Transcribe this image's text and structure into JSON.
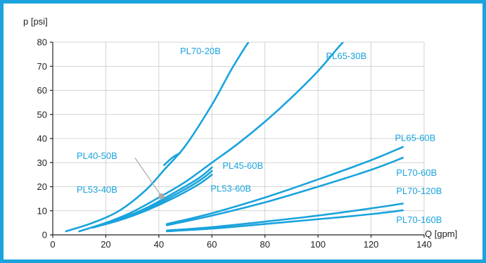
{
  "chart_data": {
    "type": "line",
    "title": "",
    "xlabel": "Q [gpm]",
    "ylabel": "p [psi]",
    "xlim": [
      0,
      140
    ],
    "ylim": [
      0,
      80
    ],
    "x_ticks": [
      "0",
      "20",
      "40",
      "60",
      "80",
      "100",
      "120",
      "140"
    ],
    "y_ticks": [
      "0",
      "10",
      "20",
      "30",
      "40",
      "50",
      "60",
      "70",
      "80"
    ],
    "grid": true,
    "colors": {
      "series": "#1aa3dc",
      "label": "#1aa3dc",
      "frame": "#1aa3dc",
      "pointer": "#aaaaaa"
    },
    "series": [
      {
        "name": "PL70-20B",
        "points": [
          [
            42,
            29
          ],
          [
            45,
            32
          ],
          [
            48,
            34
          ]
        ]
      },
      {
        "name": "PL70-20B",
        "points": [
          [
            5,
            1.5
          ],
          [
            15,
            5
          ],
          [
            25,
            10
          ],
          [
            35,
            18.5
          ],
          [
            42,
            27
          ],
          [
            50,
            37
          ],
          [
            60,
            54
          ],
          [
            67,
            68
          ],
          [
            72,
            77
          ],
          [
            75,
            82
          ]
        ]
      },
      {
        "name": "PL65-30B",
        "points": [
          [
            10,
            1.5
          ],
          [
            20,
            5
          ],
          [
            30,
            9.5
          ],
          [
            40,
            15.5
          ],
          [
            50,
            22
          ],
          [
            60,
            30
          ],
          [
            70,
            38
          ],
          [
            80,
            47
          ],
          [
            90,
            57
          ],
          [
            100,
            68
          ],
          [
            107,
            77
          ],
          [
            111,
            82
          ]
        ]
      },
      {
        "name": "PL45-60B",
        "points": [
          [
            15,
            3
          ],
          [
            25,
            6.5
          ],
          [
            35,
            11
          ],
          [
            45,
            17
          ],
          [
            55,
            23.5
          ],
          [
            60,
            28
          ]
        ]
      },
      {
        "name": "PL53-60B",
        "points": [
          [
            15,
            3
          ],
          [
            25,
            6
          ],
          [
            35,
            10
          ],
          [
            45,
            15
          ],
          [
            55,
            21
          ],
          [
            60,
            25
          ]
        ]
      },
      {
        "name": "",
        "points": [
          [
            15,
            3
          ],
          [
            25,
            6.3
          ],
          [
            35,
            10.5
          ],
          [
            45,
            16
          ],
          [
            55,
            22.3
          ],
          [
            60,
            26.5
          ]
        ]
      },
      {
        "name": "PL65-60B",
        "points": [
          [
            43,
            4.5
          ],
          [
            60,
            9
          ],
          [
            80,
            15.5
          ],
          [
            100,
            23
          ],
          [
            120,
            31
          ],
          [
            132,
            36.5
          ]
        ]
      },
      {
        "name": "PL70-60B",
        "points": [
          [
            43,
            4
          ],
          [
            60,
            8
          ],
          [
            80,
            13.5
          ],
          [
            100,
            20
          ],
          [
            120,
            27
          ],
          [
            132,
            32
          ]
        ]
      },
      {
        "name": "PL70-120B",
        "points": [
          [
            43,
            1.8
          ],
          [
            60,
            3.2
          ],
          [
            80,
            5.5
          ],
          [
            100,
            8
          ],
          [
            120,
            11
          ],
          [
            132,
            13
          ]
        ]
      },
      {
        "name": "PL70-160B",
        "points": [
          [
            43,
            1.5
          ],
          [
            60,
            2.6
          ],
          [
            80,
            4.5
          ],
          [
            100,
            6.5
          ],
          [
            120,
            8.6
          ],
          [
            132,
            10.2
          ]
        ]
      }
    ],
    "labels": [
      {
        "text": "PL70-20B",
        "x": 48,
        "y": 75
      },
      {
        "text": "PL65-30B",
        "x": 103,
        "y": 73
      },
      {
        "text": "PL40-50B",
        "x": 9,
        "y": 31.5
      },
      {
        "text": "PL53-40B",
        "x": 9,
        "y": 17.5
      },
      {
        "text": "PL45-60B",
        "x": 64,
        "y": 27.5
      },
      {
        "text": "PL53-60B",
        "x": 59.5,
        "y": 18
      },
      {
        "text": "PL65-60B",
        "x": 129,
        "y": 39
      },
      {
        "text": "PL70-60B",
        "x": 129.5,
        "y": 24.5
      },
      {
        "text": "PL70-120B",
        "x": 129.5,
        "y": 17
      },
      {
        "text": "PL70-160B",
        "x": 129.5,
        "y": 5
      }
    ],
    "pointer": {
      "from": [
        31,
        32
      ],
      "to": [
        41,
        16
      ]
    }
  }
}
